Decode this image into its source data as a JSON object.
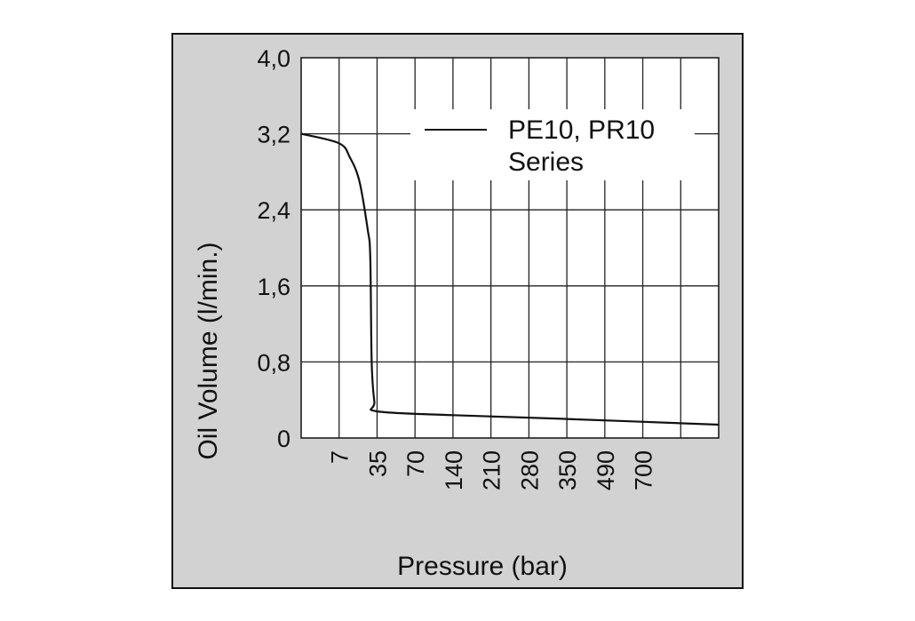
{
  "chart_data": {
    "type": "line",
    "xlabel": "Pressure (bar)",
    "ylabel": "Oil Volume (l/min.)",
    "x_categories": [
      "7",
      "35",
      "70",
      "140",
      "210",
      "280",
      "350",
      "490",
      "700"
    ],
    "y_ticks": [
      "4,0",
      "3,2",
      "2,4",
      "1,6",
      "0,8",
      "0"
    ],
    "ylim": [
      0,
      4.0
    ],
    "grid": true,
    "legend_position": "top-right",
    "series": [
      {
        "name": "PE10, PR10 Series",
        "color": "#111111",
        "points": [
          {
            "x": 0,
            "y": 3.2
          },
          {
            "x": 7,
            "y": 3.1
          },
          {
            "x": 15,
            "y": 2.95
          },
          {
            "x": 22,
            "y": 2.7
          },
          {
            "x": 28,
            "y": 2.2
          },
          {
            "x": 30,
            "y": 1.9
          },
          {
            "x": 31,
            "y": 0.8
          },
          {
            "x": 33,
            "y": 0.38
          },
          {
            "x": 35,
            "y": 0.28
          },
          {
            "x": 140,
            "y": 0.24
          },
          {
            "x": 350,
            "y": 0.2
          },
          {
            "x": 700,
            "y": 0.14
          }
        ]
      }
    ]
  },
  "colors": {
    "frame_background": "#d2d2d2",
    "plot_background": "#ffffff",
    "line": "#111111",
    "grid": "#222222"
  }
}
